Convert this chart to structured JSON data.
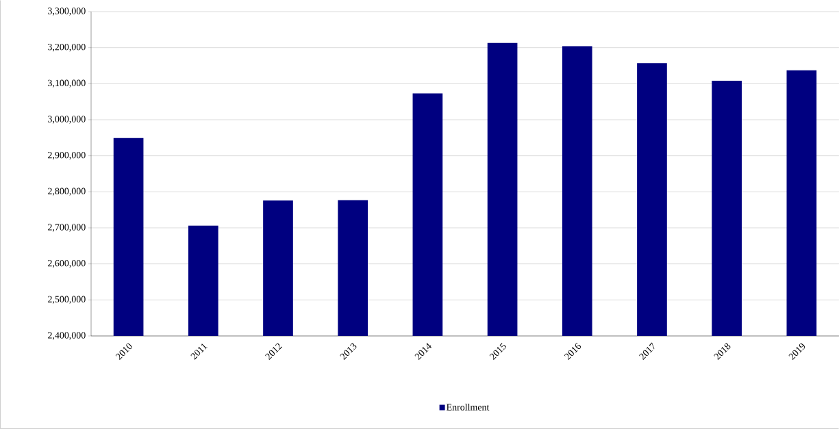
{
  "chart_data": {
    "type": "bar",
    "categories": [
      "2010",
      "2011",
      "2012",
      "2013",
      "2014",
      "2015",
      "2016",
      "2017",
      "2018",
      "2019"
    ],
    "series": [
      {
        "name": "Enrollment",
        "color": "#000080",
        "values": [
          2949000,
          2706000,
          2776000,
          2777000,
          3073000,
          3213000,
          3204000,
          3157000,
          3108000,
          3137000
        ]
      }
    ],
    "ylim": [
      2400000,
      3300000
    ],
    "yticks": [
      {
        "value": 2400000,
        "label": "2,400,000"
      },
      {
        "value": 2500000,
        "label": "2,500,000"
      },
      {
        "value": 2600000,
        "label": "2,600,000"
      },
      {
        "value": 2700000,
        "label": "2,700,000"
      },
      {
        "value": 2800000,
        "label": "2,800,000"
      },
      {
        "value": 2900000,
        "label": "2,900,000"
      },
      {
        "value": 3000000,
        "label": "3,000,000"
      },
      {
        "value": 3100000,
        "label": "3,100,000"
      },
      {
        "value": 3200000,
        "label": "3,200,000"
      },
      {
        "value": 3300000,
        "label": "3,300,000"
      }
    ],
    "grid": "y",
    "legend": "bottom"
  }
}
